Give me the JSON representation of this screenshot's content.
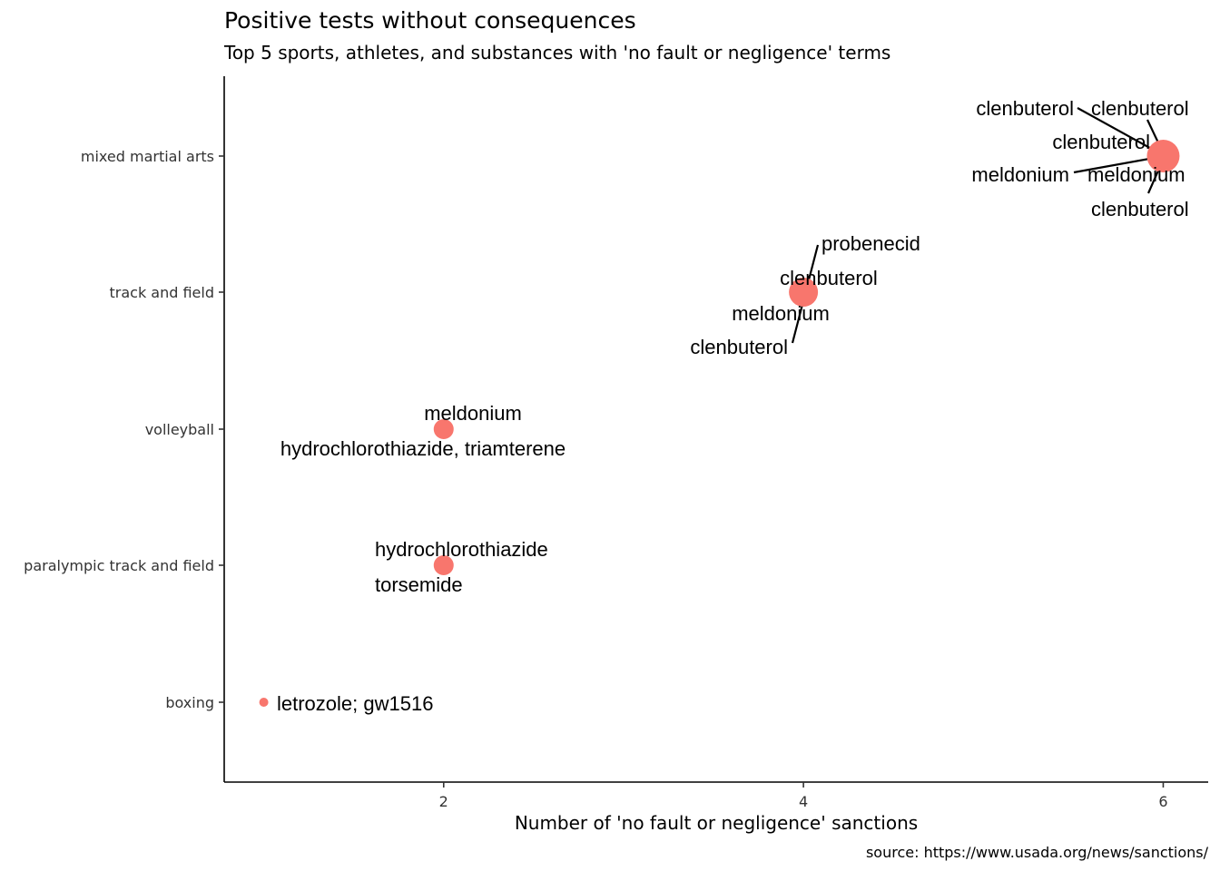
{
  "chart_data": {
    "type": "scatter",
    "title": "Positive tests without consequences",
    "subtitle": "Top 5 sports, athletes, and substances with 'no fault or negligence' terms",
    "xlabel": "Number of 'no fault or negligence' sanctions",
    "ylabel": "",
    "caption": "source: https://www.usada.org/news/sanctions/",
    "xlim": [
      0.78,
      6.25
    ],
    "x_ticks": [
      "2",
      "4",
      "6"
    ],
    "categories": [
      "boxing",
      "paralympic track and field",
      "volleyball",
      "track and field",
      "mixed martial arts"
    ],
    "grid": false,
    "legend": "none",
    "point_color": "#F8766D",
    "points": [
      {
        "sport": "mixed martial arts",
        "x": 6
      },
      {
        "sport": "track and field",
        "x": 4
      },
      {
        "sport": "volleyball",
        "x": 2
      },
      {
        "sport": "paralympic track and field",
        "x": 2
      },
      {
        "sport": "boxing",
        "x": 1
      }
    ],
    "labels": [
      {
        "sport": "mixed martial arts",
        "text": "clenbuterol"
      },
      {
        "sport": "mixed martial arts",
        "text": "clenbuterol"
      },
      {
        "sport": "mixed martial arts",
        "text": "clenbuterol"
      },
      {
        "sport": "mixed martial arts",
        "text": "meldonium"
      },
      {
        "sport": "mixed martial arts",
        "text": "meldonium"
      },
      {
        "sport": "mixed martial arts",
        "text": "clenbuterol"
      },
      {
        "sport": "track and field",
        "text": "probenecid"
      },
      {
        "sport": "track and field",
        "text": "clenbuterol"
      },
      {
        "sport": "track and field",
        "text": "meldonium"
      },
      {
        "sport": "track and field",
        "text": "clenbuterol"
      },
      {
        "sport": "volleyball",
        "text": "meldonium"
      },
      {
        "sport": "volleyball",
        "text": "hydrochlorothiazide, triamterene"
      },
      {
        "sport": "paralympic track and field",
        "text": "hydrochlorothiazide"
      },
      {
        "sport": "paralympic track and field",
        "text": "torsemide"
      },
      {
        "sport": "boxing",
        "text": "letrozole; gw1516"
      }
    ]
  }
}
